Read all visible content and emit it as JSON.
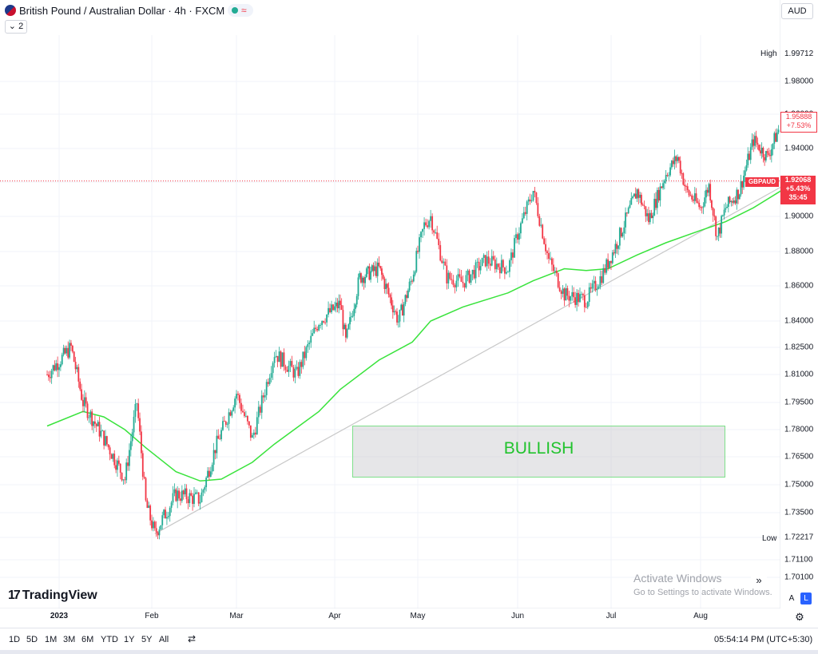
{
  "header": {
    "title": "British Pound / Australian Dollar · 4h · FXCM",
    "indicator_count": "⌄ 2",
    "currency": "AUD",
    "live_wave": "≈"
  },
  "price_scale": {
    "ticks": [
      "1.98000",
      "1.96000",
      "1.94000",
      "1.92000",
      "1.90000",
      "1.88000",
      "1.86000",
      "1.84000",
      "1.82500",
      "1.81000",
      "1.79500",
      "1.78000",
      "1.76500",
      "1.75000",
      "1.73500",
      "1.72217",
      "1.71100",
      "1.70100"
    ],
    "high_value": "1.99712",
    "high_label": "High",
    "low_label": "Low",
    "last_price": "1.95888",
    "last_change": "+7.53%",
    "current_symbol": "GBPAUD",
    "current_price": "1.92068",
    "current_change": "+5.43%",
    "countdown": "35:45"
  },
  "time_scale": {
    "labels": [
      "2023",
      "Feb",
      "Mar",
      "Apr",
      "May",
      "Jun",
      "Jul",
      "Aug"
    ]
  },
  "annotation": {
    "bullish_label": "BULLISH"
  },
  "branding": {
    "logo_icon": "17",
    "logo_text": "TradingView"
  },
  "watermark": {
    "title": "Activate Windows",
    "subtitle": "Go to Settings to activate Windows."
  },
  "controls": {
    "scroll_right": "»",
    "auto_scale": "A",
    "log_scale": "L",
    "settings": "⚙"
  },
  "bottom_toolbar": {
    "ranges": [
      "1D",
      "5D",
      "1M",
      "3M",
      "6M",
      "YTD",
      "1Y",
      "5Y",
      "All"
    ],
    "goto_date": "⇄",
    "clock": "05:54:14 PM (UTC+5:30)"
  },
  "colors": {
    "bull": "#22ab94",
    "bear": "#f23645",
    "ma": "#39e33c",
    "trendline": "#c8c8c8",
    "bullish_text": "#22c32e"
  },
  "chart_data": {
    "type": "candlestick",
    "symbol": "GBPAUD",
    "timeframe": "4h",
    "ylim": [
      1.7,
      2.0
    ],
    "x": [
      "2023",
      "Feb",
      "Mar",
      "Apr",
      "May",
      "Jun",
      "Jul",
      "Aug"
    ],
    "price_path": [
      [
        "Dec 28",
        1.81
      ],
      [
        "Jan 05",
        1.825
      ],
      [
        "Jan 09",
        1.795
      ],
      [
        "Jan 16",
        1.775
      ],
      [
        "Jan 23",
        1.753
      ],
      [
        "Jan 27",
        1.795
      ],
      [
        "Jan 30",
        1.74
      ],
      [
        "Feb 02",
        1.724
      ],
      [
        "Feb 09",
        1.745
      ],
      [
        "Feb 17",
        1.742
      ],
      [
        "Feb 22",
        1.77
      ],
      [
        "Mar 01",
        1.8
      ],
      [
        "Mar 06",
        1.775
      ],
      [
        "Mar 13",
        1.822
      ],
      [
        "Mar 20",
        1.81
      ],
      [
        "Mar 27",
        1.84
      ],
      [
        "Apr 03",
        1.85
      ],
      [
        "Apr 05",
        1.828
      ],
      [
        "Apr 10",
        1.865
      ],
      [
        "Apr 17",
        1.87
      ],
      [
        "Apr 24",
        1.84
      ],
      [
        "Apr 29",
        1.865
      ],
      [
        "May 03",
        1.895
      ],
      [
        "May 05",
        1.9
      ],
      [
        "May 10",
        1.865
      ],
      [
        "May 15",
        1.862
      ],
      [
        "May 22",
        1.875
      ],
      [
        "May 29",
        1.87
      ],
      [
        "Jun 01",
        1.89
      ],
      [
        "Jun 06",
        1.915
      ],
      [
        "Jun 11",
        1.875
      ],
      [
        "Jun 16",
        1.855
      ],
      [
        "Jun 23",
        1.852
      ],
      [
        "Jun 28",
        1.866
      ],
      [
        "Jul 03",
        1.885
      ],
      [
        "Jul 10",
        1.915
      ],
      [
        "Jul 14",
        1.898
      ],
      [
        "Jul 20",
        1.925
      ],
      [
        "Jul 24",
        1.935
      ],
      [
        "Jul 27",
        1.915
      ],
      [
        "Aug 01",
        1.905
      ],
      [
        "Aug 04",
        1.918
      ],
      [
        "Aug 07",
        1.888
      ],
      [
        "Aug 10",
        1.905
      ],
      [
        "Aug 15",
        1.915
      ],
      [
        "Aug 20",
        1.945
      ],
      [
        "Aug 25",
        1.935
      ],
      [
        "Aug 30",
        1.955
      ],
      [
        "Sep 03",
        1.99
      ],
      [
        "Sep 05",
        1.997
      ],
      [
        "Sep 08",
        1.98
      ],
      [
        "Sep 11",
        1.965
      ],
      [
        "Sep 13",
        1.959
      ]
    ],
    "moving_average": [
      [
        "Dec 28",
        1.782
      ],
      [
        "Jan 09",
        1.79
      ],
      [
        "Jan 16",
        1.787
      ],
      [
        "Jan 23",
        1.78
      ],
      [
        "Jan 30",
        1.77
      ],
      [
        "Feb 09",
        1.757
      ],
      [
        "Feb 17",
        1.752
      ],
      [
        "Feb 24",
        1.753
      ],
      [
        "Mar 06",
        1.762
      ],
      [
        "Mar 13",
        1.772
      ],
      [
        "Mar 27",
        1.79
      ],
      [
        "Apr 03",
        1.802
      ],
      [
        "Apr 17",
        1.818
      ],
      [
        "Apr 29",
        1.828
      ],
      [
        "May 05",
        1.84
      ],
      [
        "May 15",
        1.848
      ],
      [
        "May 29",
        1.856
      ],
      [
        "Jun 06",
        1.863
      ],
      [
        "Jun 16",
        1.87
      ],
      [
        "Jun 23",
        1.869
      ],
      [
        "Jun 30",
        1.87
      ],
      [
        "Jul 10",
        1.878
      ],
      [
        "Jul 20",
        1.885
      ],
      [
        "Aug 01",
        1.892
      ],
      [
        "Aug 10",
        1.897
      ],
      [
        "Aug 20",
        1.905
      ],
      [
        "Aug 30",
        1.915
      ],
      [
        "Sep 06",
        1.926
      ],
      [
        "Sep 13",
        1.938
      ]
    ],
    "trendline": [
      [
        "Feb 02",
        1.724
      ],
      [
        "Sep 01",
        1.919
      ]
    ],
    "bullish_zone": [
      1.753,
      1.782
    ],
    "last_price": 1.95888,
    "current_price": 1.92068
  }
}
